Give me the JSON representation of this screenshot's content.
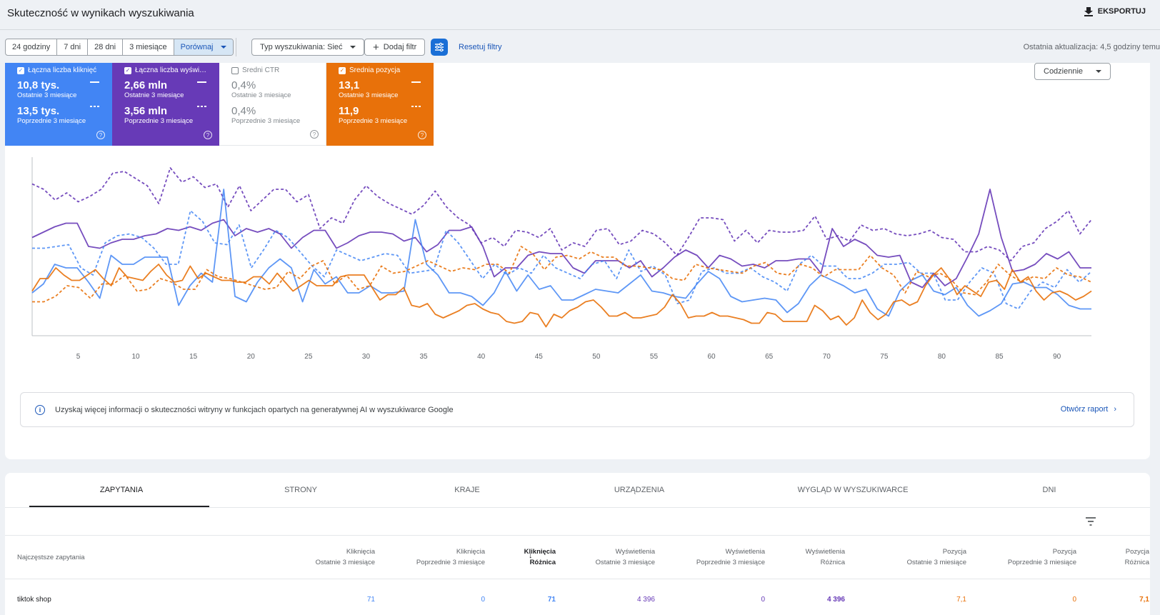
{
  "header": {
    "title": "Skuteczność w wynikach wyszukiwania",
    "export_label": "EKSPORTUJ"
  },
  "filters": {
    "ranges": [
      "24 godziny",
      "7 dni",
      "28 dni",
      "3 miesiące",
      "Porównaj"
    ],
    "search_type": "Typ wyszukiwania: Sieć",
    "add_filter": "Dodaj filtr",
    "reset": "Resetuj filtry",
    "last_update": "Ostatnia aktualizacja: 4,5 godziny temu"
  },
  "metrics": {
    "clicks": {
      "label": "Łączna liczba kliknięć",
      "v1": "10,8 tys.",
      "p1": "Ostatnie 3 miesiące",
      "v2": "13,5 tys.",
      "p2": "Poprzednie 3 miesiące",
      "color": "#4285f4",
      "checked": true
    },
    "impressions": {
      "label": "Łączna liczba wyświ…",
      "v1": "2,66 mln",
      "p1": "Ostatnie 3 miesiące",
      "v2": "3,56 mln",
      "p2": "Poprzednie 3 miesiące",
      "color": "#673ab7",
      "checked": true
    },
    "ctr": {
      "label": "Średni CTR",
      "v1": "0,4%",
      "p1": "Ostatnie 3 miesiące",
      "v2": "0,4%",
      "p2": "Poprzednie 3 miesiące",
      "color": "#80868b",
      "checked": false
    },
    "position": {
      "label": "Średnia pozycja",
      "v1": "13,1",
      "p1": "Ostatnie 3 miesiące",
      "v2": "11,9",
      "p2": "Poprzednie 3 miesiące",
      "color": "#e8710a",
      "checked": true
    }
  },
  "granularity": "Codziennie",
  "chart_data": {
    "type": "line",
    "x_ticks": [
      "5",
      "10",
      "15",
      "20",
      "25",
      "30",
      "35",
      "40",
      "45",
      "50",
      "55",
      "60",
      "65",
      "70",
      "75",
      "80",
      "85",
      "90"
    ],
    "x_tick_values": [
      5,
      10,
      15,
      20,
      25,
      30,
      35,
      40,
      45,
      50,
      55,
      60,
      65,
      70,
      75,
      80,
      85,
      90
    ],
    "ylim": [
      0,
      100
    ],
    "series": [
      {
        "period": "previous",
        "metric": "impressions",
        "color": "#673ab7",
        "dashed": true,
        "values": [
          85,
          82,
          76,
          80,
          75,
          78,
          82,
          91,
          92,
          88,
          84,
          74,
          94,
          86,
          89,
          83,
          85,
          72,
          84,
          70,
          76,
          82,
          82,
          75,
          79,
          60,
          66,
          63,
          76,
          84,
          78,
          74,
          71,
          68,
          73,
          81,
          72,
          66,
          62,
          52,
          55,
          50,
          59,
          58,
          55,
          60,
          48,
          52,
          50,
          59,
          60,
          51,
          53,
          59,
          57,
          52,
          45,
          55,
          66,
          66,
          65,
          53,
          59,
          52,
          59,
          58,
          58,
          59,
          67,
          54,
          56,
          53,
          62,
          59,
          60,
          57,
          56,
          57,
          59,
          55,
          54,
          47,
          47,
          50,
          48,
          42,
          50,
          52,
          60,
          64,
          70,
          57,
          65
        ]
      },
      {
        "period": "current",
        "metric": "impressions",
        "color": "#673ab7",
        "dashed": true,
        "note": "",
        "values": []
      },
      {
        "period": "current",
        "metric": "impressions",
        "color": "#673ab7",
        "dashed": false,
        "values": [
          55,
          58,
          61,
          63,
          63,
          50,
          49,
          52,
          54,
          54,
          56,
          57,
          60,
          59,
          61,
          59,
          63,
          65,
          56,
          60,
          58,
          60,
          57,
          49,
          55,
          59,
          59,
          49,
          52,
          56,
          58,
          58,
          57,
          53,
          55,
          47,
          51,
          59,
          59,
          61,
          50,
          33,
          38,
          38,
          45,
          47,
          46,
          46,
          38,
          35,
          42,
          42,
          42,
          38,
          42,
          33,
          38,
          44,
          48,
          45,
          38,
          45,
          43,
          39,
          40,
          38,
          42,
          42,
          43,
          43,
          35,
          60,
          50,
          54,
          51,
          45,
          44,
          45,
          30,
          27,
          35,
          28,
          32,
          44,
          57,
          82,
          55,
          36,
          37,
          40,
          46,
          43,
          47,
          38,
          38
        ]
      },
      {
        "period": "previous",
        "metric": "clicks",
        "color": "#4285f4",
        "dashed": true,
        "values": [
          49,
          49,
          50,
          51,
          38,
          34,
          52,
          56,
          57,
          55,
          49,
          40,
          40,
          70,
          64,
          52,
          51,
          62,
          38,
          48,
          59,
          55,
          47,
          39,
          33,
          48,
          45,
          42,
          44,
          46,
          45,
          35,
          36,
          37,
          59,
          52,
          42,
          32,
          40,
          34,
          38,
          35,
          45,
          38,
          35,
          32,
          40,
          42,
          32,
          48,
          36,
          39,
          34,
          18,
          20,
          36,
          38,
          35,
          35,
          38,
          33,
          30,
          25,
          40,
          45,
          39,
          39,
          32,
          32,
          35,
          40,
          40,
          41,
          35,
          35,
          20,
          20,
          30,
          38,
          35,
          18,
          15,
          25,
          30,
          27,
          37,
          30,
          36
        ]
      },
      {
        "period": "current",
        "metric": "clicks",
        "color": "#4285f4",
        "dashed": false,
        "values": [
          24,
          29,
          40,
          38,
          38,
          30,
          21,
          45,
          40,
          40,
          44,
          44,
          44,
          17,
          28,
          35,
          30,
          82,
          22,
          19,
          30,
          38,
          43,
          38,
          19,
          37,
          29,
          33,
          24,
          24,
          28,
          24,
          24,
          25,
          65,
          40,
          34,
          24,
          24,
          22,
          17,
          24,
          36,
          25,
          34,
          26,
          28,
          20,
          20,
          23,
          26,
          25,
          24,
          29,
          34,
          25,
          24,
          22,
          21,
          29,
          36,
          32,
          22,
          19,
          20,
          21,
          20,
          13,
          18,
          28,
          34,
          31,
          28,
          24,
          26,
          15,
          11,
          25,
          31,
          34,
          25,
          23,
          27,
          17,
          11,
          14,
          18,
          29,
          30,
          27,
          27,
          23,
          17,
          15,
          15
        ]
      },
      {
        "period": "previous",
        "metric": "position",
        "color": "#e8710a",
        "dashed": true,
        "values": [
          19,
          19,
          22,
          28,
          27,
          21,
          29,
          29,
          34,
          25,
          26,
          32,
          30,
          26,
          26,
          37,
          33,
          32,
          30,
          28,
          26,
          27,
          36,
          32,
          39,
          42,
          29,
          34,
          26,
          28,
          39,
          35,
          36,
          39,
          42,
          39,
          36,
          38,
          37,
          40,
          40,
          35,
          50,
          46,
          37,
          44,
          45,
          43,
          47,
          44,
          44,
          39,
          39,
          38,
          37,
          32,
          31,
          40,
          38,
          37,
          36,
          35,
          39,
          41,
          35,
          34,
          40,
          38,
          33,
          37,
          37,
          37,
          45,
          38,
          34,
          24,
          36,
          33,
          35,
          31,
          24,
          23,
          30,
          40,
          34,
          30,
          33,
          32,
          38,
          34,
          33,
          30
        ]
      },
      {
        "period": "current",
        "metric": "position",
        "color": "#e8710a",
        "dashed": false,
        "values": [
          25,
          32,
          32,
          38,
          34,
          31,
          31,
          34,
          37,
          32,
          28,
          38,
          33,
          32,
          31,
          36,
          40,
          34,
          30,
          31,
          39,
          32,
          35,
          33,
          31,
          31,
          30,
          30,
          33,
          33,
          29,
          35,
          30,
          25,
          28,
          31,
          28,
          28,
          28,
          33,
          34,
          34,
          34,
          27,
          20,
          23,
          23,
          27,
          17,
          16,
          18,
          12,
          10,
          12,
          14,
          17,
          18,
          15,
          13,
          12,
          8,
          7,
          8,
          13,
          12,
          5,
          12,
          10,
          14,
          16,
          19,
          20,
          16,
          11,
          11,
          13,
          10,
          10,
          11,
          12,
          16,
          23,
          18,
          10,
          11,
          11,
          13,
          11,
          11,
          10,
          9,
          7,
          7,
          13,
          12,
          8,
          8,
          8,
          8,
          17,
          14,
          9,
          11,
          6,
          10,
          20,
          13,
          9,
          12,
          19,
          20,
          17,
          19,
          28,
          34,
          38,
          32,
          23,
          28,
          25,
          22,
          30,
          31,
          26,
          37,
          30,
          33,
          25,
          20,
          24,
          25,
          23,
          20,
          22,
          25
        ]
      }
    ]
  },
  "info": {
    "text": "Uzyskaj więcej informacji o skuteczności witryny w funkcjach opartych na generatywnej AI w wyszukiwarce Google",
    "link": "Otwórz raport",
    "icon": "info-icon"
  },
  "tabs": [
    "ZAPYTANIA",
    "STRONY",
    "KRAJE",
    "URZĄDZENIA",
    "WYGLĄD W WYSZUKIWARCE",
    "DNI"
  ],
  "table": {
    "row_header": "Najczęstsze zapytania",
    "columns": [
      {
        "l1": "Kliknięcia",
        "l2": "Ostatnie 3 miesiące"
      },
      {
        "l1": "Kliknięcia",
        "l2": "Poprzednie 3 miesiące"
      },
      {
        "l1": "Kliknięcia",
        "l2": "Różnica"
      },
      {
        "l1": "Wyświetlenia",
        "l2": "Ostatnie 3 miesiące"
      },
      {
        "l1": "Wyświetlenia",
        "l2": "Poprzednie 3 miesiące"
      },
      {
        "l1": "Wyświetlenia",
        "l2": "Różnica"
      },
      {
        "l1": "Pozycja",
        "l2": "Ostatnie 3 miesiące"
      },
      {
        "l1": "Pozycja",
        "l2": "Poprzednie 3 miesiące"
      },
      {
        "l1": "Pozycja",
        "l2": "Różnica"
      }
    ],
    "rows": [
      {
        "query": "tiktok shop",
        "cells": [
          "71",
          "0",
          "71",
          "4 396",
          "0",
          "4 396",
          "7,1",
          "0",
          "7,1"
        ]
      }
    ]
  }
}
